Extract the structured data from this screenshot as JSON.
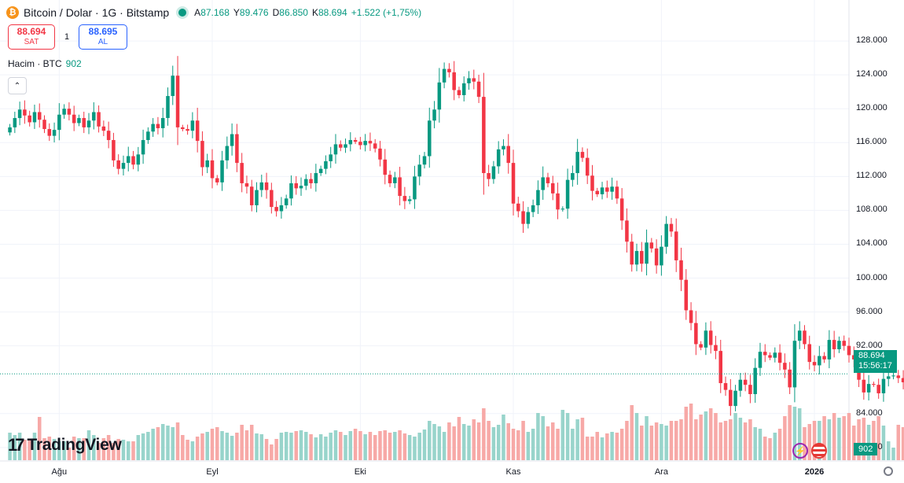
{
  "header": {
    "coin_symbol": "₿",
    "title": "Bitcoin / Dolar · 1G · Bitstamp",
    "ohlc": {
      "open_label": "A",
      "open": "87.168",
      "high_label": "Y",
      "high": "89.476",
      "low_label": "D",
      "low": "86.850",
      "close_label": "K",
      "close": "88.694",
      "change": "+1.522 (+1,75%)"
    }
  },
  "trade": {
    "sell_price": "88.694",
    "sell_label": "SAT",
    "quantity": "1",
    "buy_price": "88.695",
    "buy_label": "AL"
  },
  "volume_legend": {
    "label": "Hacim · BTC",
    "value": "902"
  },
  "collapse_glyph": "⌃",
  "price_tag": {
    "price": "88.694",
    "countdown": "15:56:17"
  },
  "volume_tag": "902",
  "logo": {
    "mark": "17",
    "text": "TradingView"
  },
  "icons": [
    "bitcoin-icon",
    "live-dot-icon",
    "chevron-up-icon",
    "lightning-icon",
    "us-flag-icon",
    "settings-icon"
  ],
  "colors": {
    "up": "#089981",
    "down": "#f23645",
    "up_volume": "#98d4cb",
    "down_volume": "#f7a9a7",
    "grid": "#f0f3fa"
  },
  "chart_data": {
    "type": "candlestick",
    "title": "Bitcoin / Dolar · 1G · Bitstamp",
    "y_ticks": [
      "128.000",
      "124.000",
      "120.000",
      "116.000",
      "112.000",
      "108.000",
      "104.000",
      "100.000",
      "96.000",
      "92.000",
      "84.000",
      "80.000"
    ],
    "y_tick_values": [
      128000,
      124000,
      120000,
      116000,
      112000,
      108000,
      104000,
      100000,
      96000,
      92000,
      84000,
      80000
    ],
    "x_ticks": [
      "Ağu",
      "Eyl",
      "Eki",
      "Kas",
      "Ara",
      "2026"
    ],
    "x_tick_dates": [
      "2025-08-01",
      "2025-09-01",
      "2025-10-01",
      "2025-11-01",
      "2025-12-01",
      "2026-01-01"
    ],
    "ylim": [
      78500,
      129400
    ],
    "xlim": [
      "2025-07-20",
      "2026-01-08"
    ],
    "start_date": "2025-07-22",
    "grid": true,
    "close": [
      117800,
      118900,
      119900,
      119200,
      118400,
      119600,
      118700,
      117600,
      116800,
      117500,
      119300,
      120000,
      119300,
      118300,
      118900,
      117800,
      118600,
      119600,
      117900,
      117400,
      116300,
      113900,
      112900,
      113600,
      114400,
      113400,
      114600,
      116300,
      117300,
      118200,
      117700,
      118900,
      121500,
      123900,
      117800,
      117600,
      117400,
      118600,
      116200,
      113100,
      113900,
      111800,
      111300,
      113900,
      115600,
      117000,
      113600,
      111200,
      110800,
      108600,
      110400,
      111300,
      110400,
      108400,
      107900,
      108600,
      109400,
      111200,
      110600,
      110900,
      111700,
      111200,
      112400,
      112900,
      113800,
      114600,
      115800,
      115400,
      115800,
      116300,
      116100,
      115700,
      116200,
      115900,
      115300,
      114000,
      112200,
      111200,
      111900,
      109700,
      109100,
      109300,
      112000,
      113400,
      114400,
      118600,
      119900,
      123100,
      124700,
      124300,
      122200,
      121600,
      123000,
      123600,
      123200,
      121400,
      112400,
      111700,
      113200,
      115200,
      115600,
      113600,
      108800,
      107900,
      106400,
      107800,
      108600,
      110400,
      111900,
      111200,
      110000,
      108100,
      108200,
      111600,
      112400,
      114900,
      114200,
      112100,
      110300,
      109900,
      110700,
      110200,
      110800,
      109400,
      106800,
      104300,
      101600,
      103200,
      101700,
      104200,
      103500,
      101500,
      103700,
      106400,
      105500,
      102100,
      99800,
      96200,
      94700,
      92200,
      91800,
      93800,
      92100,
      91400,
      87600,
      86800,
      84900,
      86700,
      88000,
      87400,
      86300,
      89400,
      91300,
      90900,
      90600,
      91200,
      90000,
      89200,
      87100,
      92600,
      93800,
      92200,
      90100,
      89700,
      90800,
      90400,
      92700,
      91600,
      92600,
      92000,
      90900,
      90400,
      88000,
      86500,
      87500,
      87400,
      86400,
      88100,
      88400,
      88500,
      88200,
      87700,
      87200,
      87500,
      88694
    ],
    "volume_scale": [
      0.35,
      0.32,
      0.35,
      0.26,
      0.27,
      0.35,
      0.55,
      0.28,
      0.3,
      0.27,
      0.24,
      0.24,
      0.16,
      0.3,
      0.28,
      0.28,
      0.38,
      0.32,
      0.22,
      0.28,
      0.32,
      0.22,
      0.27,
      0.26,
      0.24,
      0.24,
      0.32,
      0.34,
      0.36,
      0.4,
      0.42,
      0.46,
      0.44,
      0.42,
      0.48,
      0.32,
      0.26,
      0.24,
      0.3,
      0.34,
      0.36,
      0.4,
      0.42,
      0.37,
      0.35,
      0.31,
      0.35,
      0.45,
      0.38,
      0.45,
      0.34,
      0.33,
      0.27,
      0.2,
      0.27,
      0.35,
      0.36,
      0.35,
      0.37,
      0.38,
      0.36,
      0.33,
      0.29,
      0.33,
      0.3,
      0.35,
      0.38,
      0.36,
      0.32,
      0.37,
      0.4,
      0.37,
      0.33,
      0.36,
      0.32,
      0.37,
      0.38,
      0.35,
      0.36,
      0.38,
      0.34,
      0.32,
      0.3,
      0.35,
      0.39,
      0.5,
      0.46,
      0.43,
      0.36,
      0.48,
      0.43,
      0.55,
      0.46,
      0.44,
      0.52,
      0.48,
      0.66,
      0.5,
      0.42,
      0.45,
      0.58,
      0.47,
      0.4,
      0.38,
      0.5,
      0.36,
      0.4,
      0.6,
      0.56,
      0.43,
      0.48,
      0.4,
      0.64,
      0.6,
      0.4,
      0.52,
      0.54,
      0.3,
      0.3,
      0.36,
      0.29,
      0.34,
      0.36,
      0.35,
      0.4,
      0.5,
      0.7,
      0.6,
      0.44,
      0.56,
      0.44,
      0.48,
      0.46,
      0.44,
      0.5,
      0.5,
      0.52,
      0.68,
      0.72,
      0.52,
      0.58,
      0.62,
      0.66,
      0.6,
      0.48,
      0.5,
      0.52,
      0.6,
      0.54,
      0.48,
      0.52,
      0.42,
      0.4,
      0.3,
      0.28,
      0.35,
      0.4,
      0.56,
      0.7,
      0.68,
      0.66,
      0.42,
      0.46,
      0.5,
      0.5,
      0.56,
      0.52,
      0.6,
      0.54,
      0.56,
      0.6,
      0.44,
      0.52,
      0.54,
      0.45,
      0.5,
      0.56,
      0.44,
      0.24,
      0.16,
      0.45,
      0.42,
      0.32,
      0.3,
      0.22,
      0.2,
      0.22
    ]
  }
}
